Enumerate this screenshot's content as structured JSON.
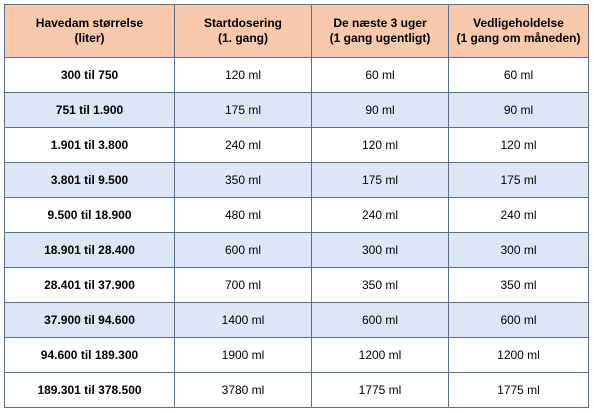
{
  "table": {
    "headers": [
      {
        "line1": "Havedam størrelse",
        "line2": "(liter)"
      },
      {
        "line1": "Startdosering",
        "line2": "(1. gang)"
      },
      {
        "line1": "De næste 3 uger",
        "line2": "(1 gang ugentligt)"
      },
      {
        "line1": "Vedligeholdelse",
        "line2": "(1 gang om måneden)"
      }
    ],
    "rows": [
      [
        "300 til 750",
        "120 ml",
        "60 ml",
        "60 ml"
      ],
      [
        "751 til 1.900",
        "175 ml",
        "90 ml",
        "90 ml"
      ],
      [
        "1.901 til 3.800",
        "240 ml",
        "120 ml",
        "120 ml"
      ],
      [
        "3.801 til 9.500",
        "350 ml",
        "175 ml",
        "175 ml"
      ],
      [
        "9.500 til 18.900",
        "480 ml",
        "240 ml",
        "240 ml"
      ],
      [
        "18.901 til 28.400",
        "600 ml",
        "300 ml",
        "300 ml"
      ],
      [
        "28.401 til 37.900",
        "700 ml",
        "350 ml",
        "350 ml"
      ],
      [
        "37.900 til 94.600",
        "1400 ml",
        "600 ml",
        "600 ml"
      ],
      [
        "94.600 til 189.300",
        "1900 ml",
        "1200 ml",
        "1200 ml"
      ],
      [
        "189.301 til 378.500",
        "3780 ml",
        "1775 ml",
        "1775 ml"
      ]
    ]
  },
  "colors": {
    "header_bg": "#f8c9ad",
    "shaded_row_bg": "#dde6f4",
    "plain_row_bg": "#ffffff",
    "border": "#5a6e8c"
  }
}
